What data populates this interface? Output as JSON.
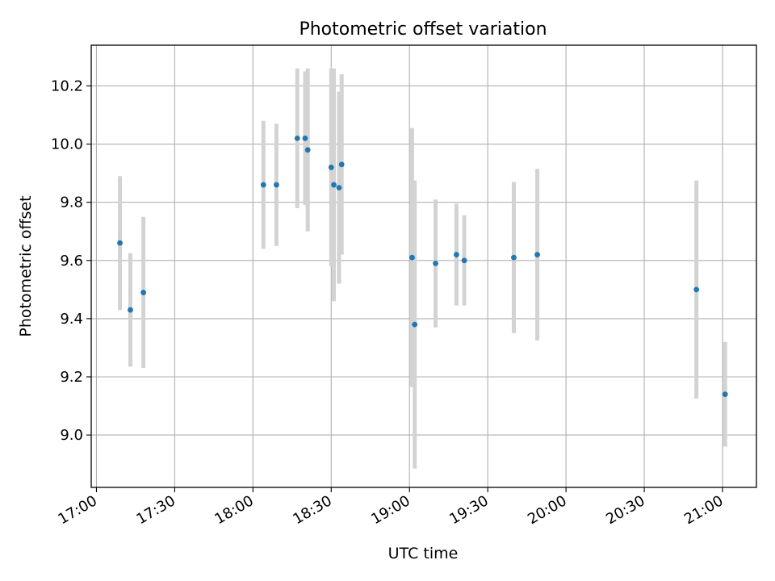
{
  "chart_data": {
    "type": "scatter",
    "title": "Photometric offset variation",
    "xlabel": "UTC time",
    "ylabel": "Photometric offset",
    "x_ticks": [
      "17:00",
      "17:30",
      "18:00",
      "18:30",
      "19:00",
      "19:30",
      "20:00",
      "20:30",
      "21:00"
    ],
    "y_ticks": [
      "9.0",
      "9.2",
      "9.4",
      "9.6",
      "9.8",
      "10.0",
      "10.2"
    ],
    "xlim": [
      "16:58",
      "21:13"
    ],
    "ylim": [
      8.82,
      10.34
    ],
    "grid": true,
    "colors": {
      "point": "#1f77b4",
      "errorbar": "#d3d3d3",
      "grid": "#b0b0b0"
    },
    "series": [
      {
        "points": [
          {
            "x": "17:09",
            "y": 9.66,
            "err": 0.23
          },
          {
            "x": "17:13",
            "y": 9.43,
            "err": 0.195
          },
          {
            "x": "17:18",
            "y": 9.49,
            "err": 0.26
          },
          {
            "x": "18:04",
            "y": 9.86,
            "err": 0.22
          },
          {
            "x": "18:09",
            "y": 9.86,
            "err": 0.21
          },
          {
            "x": "18:17",
            "y": 10.02,
            "err": 0.24
          },
          {
            "x": "18:20",
            "y": 10.02,
            "err": 0.23
          },
          {
            "x": "18:21",
            "y": 9.98,
            "err": 0.28
          },
          {
            "x": "18:30",
            "y": 9.92,
            "err": 0.34
          },
          {
            "x": "18:31",
            "y": 9.86,
            "err": 0.4
          },
          {
            "x": "18:33",
            "y": 9.85,
            "err": 0.33
          },
          {
            "x": "18:34",
            "y": 9.93,
            "err": 0.31
          },
          {
            "x": "19:01",
            "y": 9.61,
            "err": 0.445
          },
          {
            "x": "19:02",
            "y": 9.38,
            "err": 0.495
          },
          {
            "x": "19:10",
            "y": 9.59,
            "err": 0.22
          },
          {
            "x": "19:18",
            "y": 9.62,
            "err": 0.175
          },
          {
            "x": "19:21",
            "y": 9.6,
            "err": 0.155
          },
          {
            "x": "19:40",
            "y": 9.61,
            "err": 0.26
          },
          {
            "x": "19:49",
            "y": 9.62,
            "err": 0.295
          },
          {
            "x": "20:50",
            "y": 9.5,
            "err": 0.375
          },
          {
            "x": "21:01",
            "y": 9.14,
            "err": 0.18
          }
        ]
      }
    ]
  }
}
